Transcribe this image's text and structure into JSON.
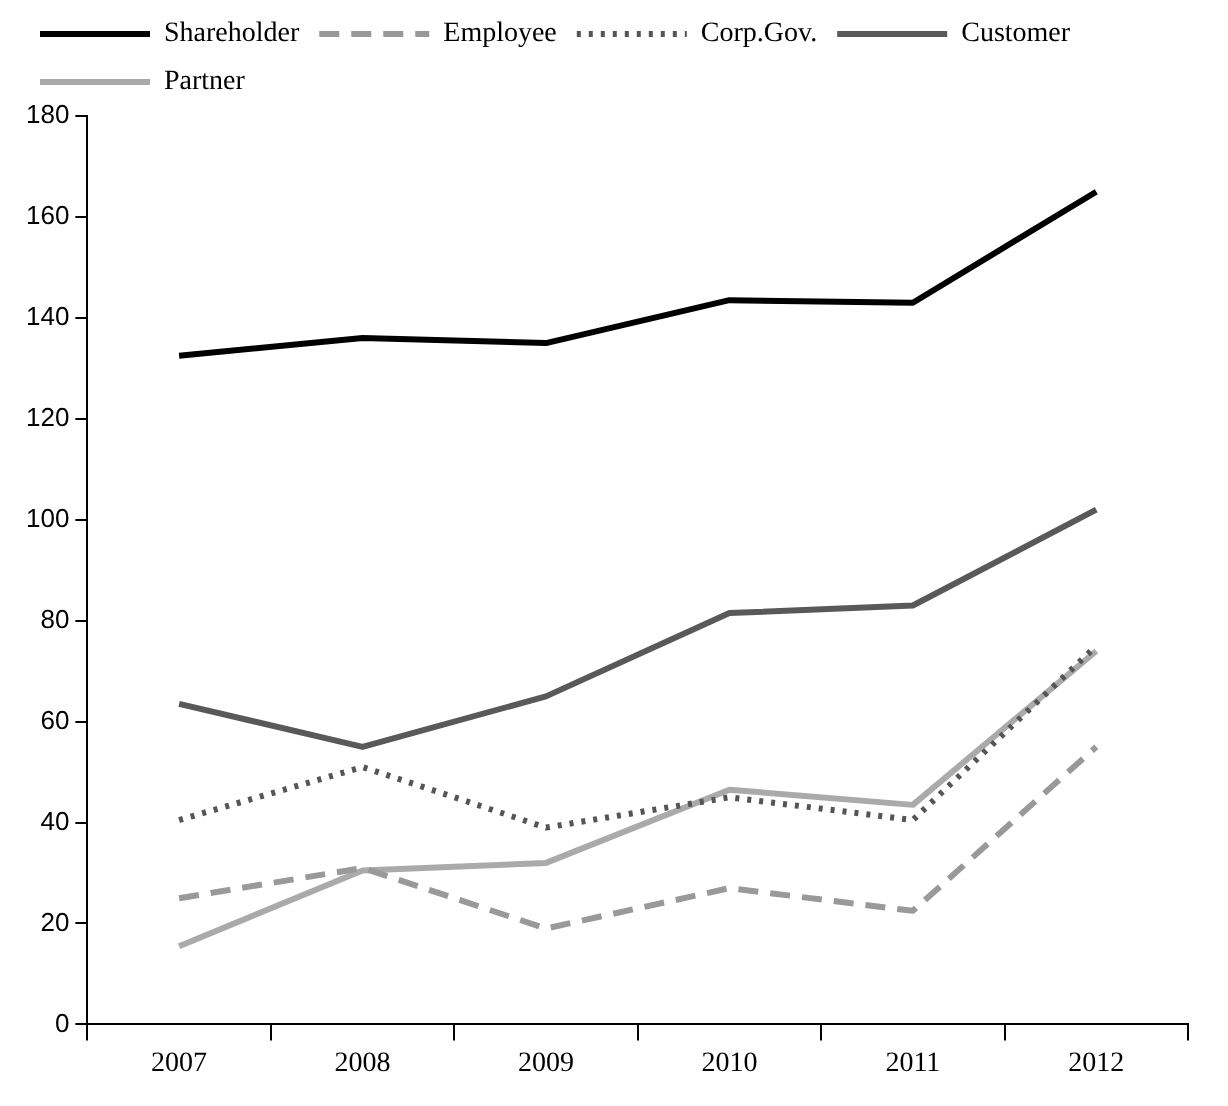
{
  "chart_data": {
    "type": "line",
    "categories": [
      "2007",
      "2008",
      "2009",
      "2010",
      "2011",
      "2012"
    ],
    "series": [
      {
        "name": "Shareholder",
        "color": "#000000",
        "line_style": "solid",
        "values": [
          132.5,
          136,
          135,
          143.5,
          143,
          165
        ]
      },
      {
        "name": "Employee",
        "color": "#999999",
        "line_style": "dashed",
        "values": [
          25,
          31,
          19,
          27,
          22.5,
          55
        ]
      },
      {
        "name": "Corp.Gov.",
        "color": "#555555",
        "line_style": "dotted",
        "values": [
          40.5,
          51,
          39,
          45,
          40.5,
          75
        ]
      },
      {
        "name": "Customer",
        "color": "#595959",
        "line_style": "solid",
        "values": [
          63.5,
          55,
          65,
          81.5,
          83,
          102
        ]
      },
      {
        "name": "Partner",
        "color": "#aaaaaa",
        "line_style": "solid",
        "values": [
          15.5,
          30.5,
          32,
          46.5,
          43.5,
          74
        ]
      }
    ],
    "ylim": [
      0,
      180
    ],
    "yticks": [
      0,
      20,
      40,
      60,
      80,
      100,
      120,
      140,
      160,
      180
    ],
    "grid": false,
    "legend": "top",
    "marker": "none"
  }
}
